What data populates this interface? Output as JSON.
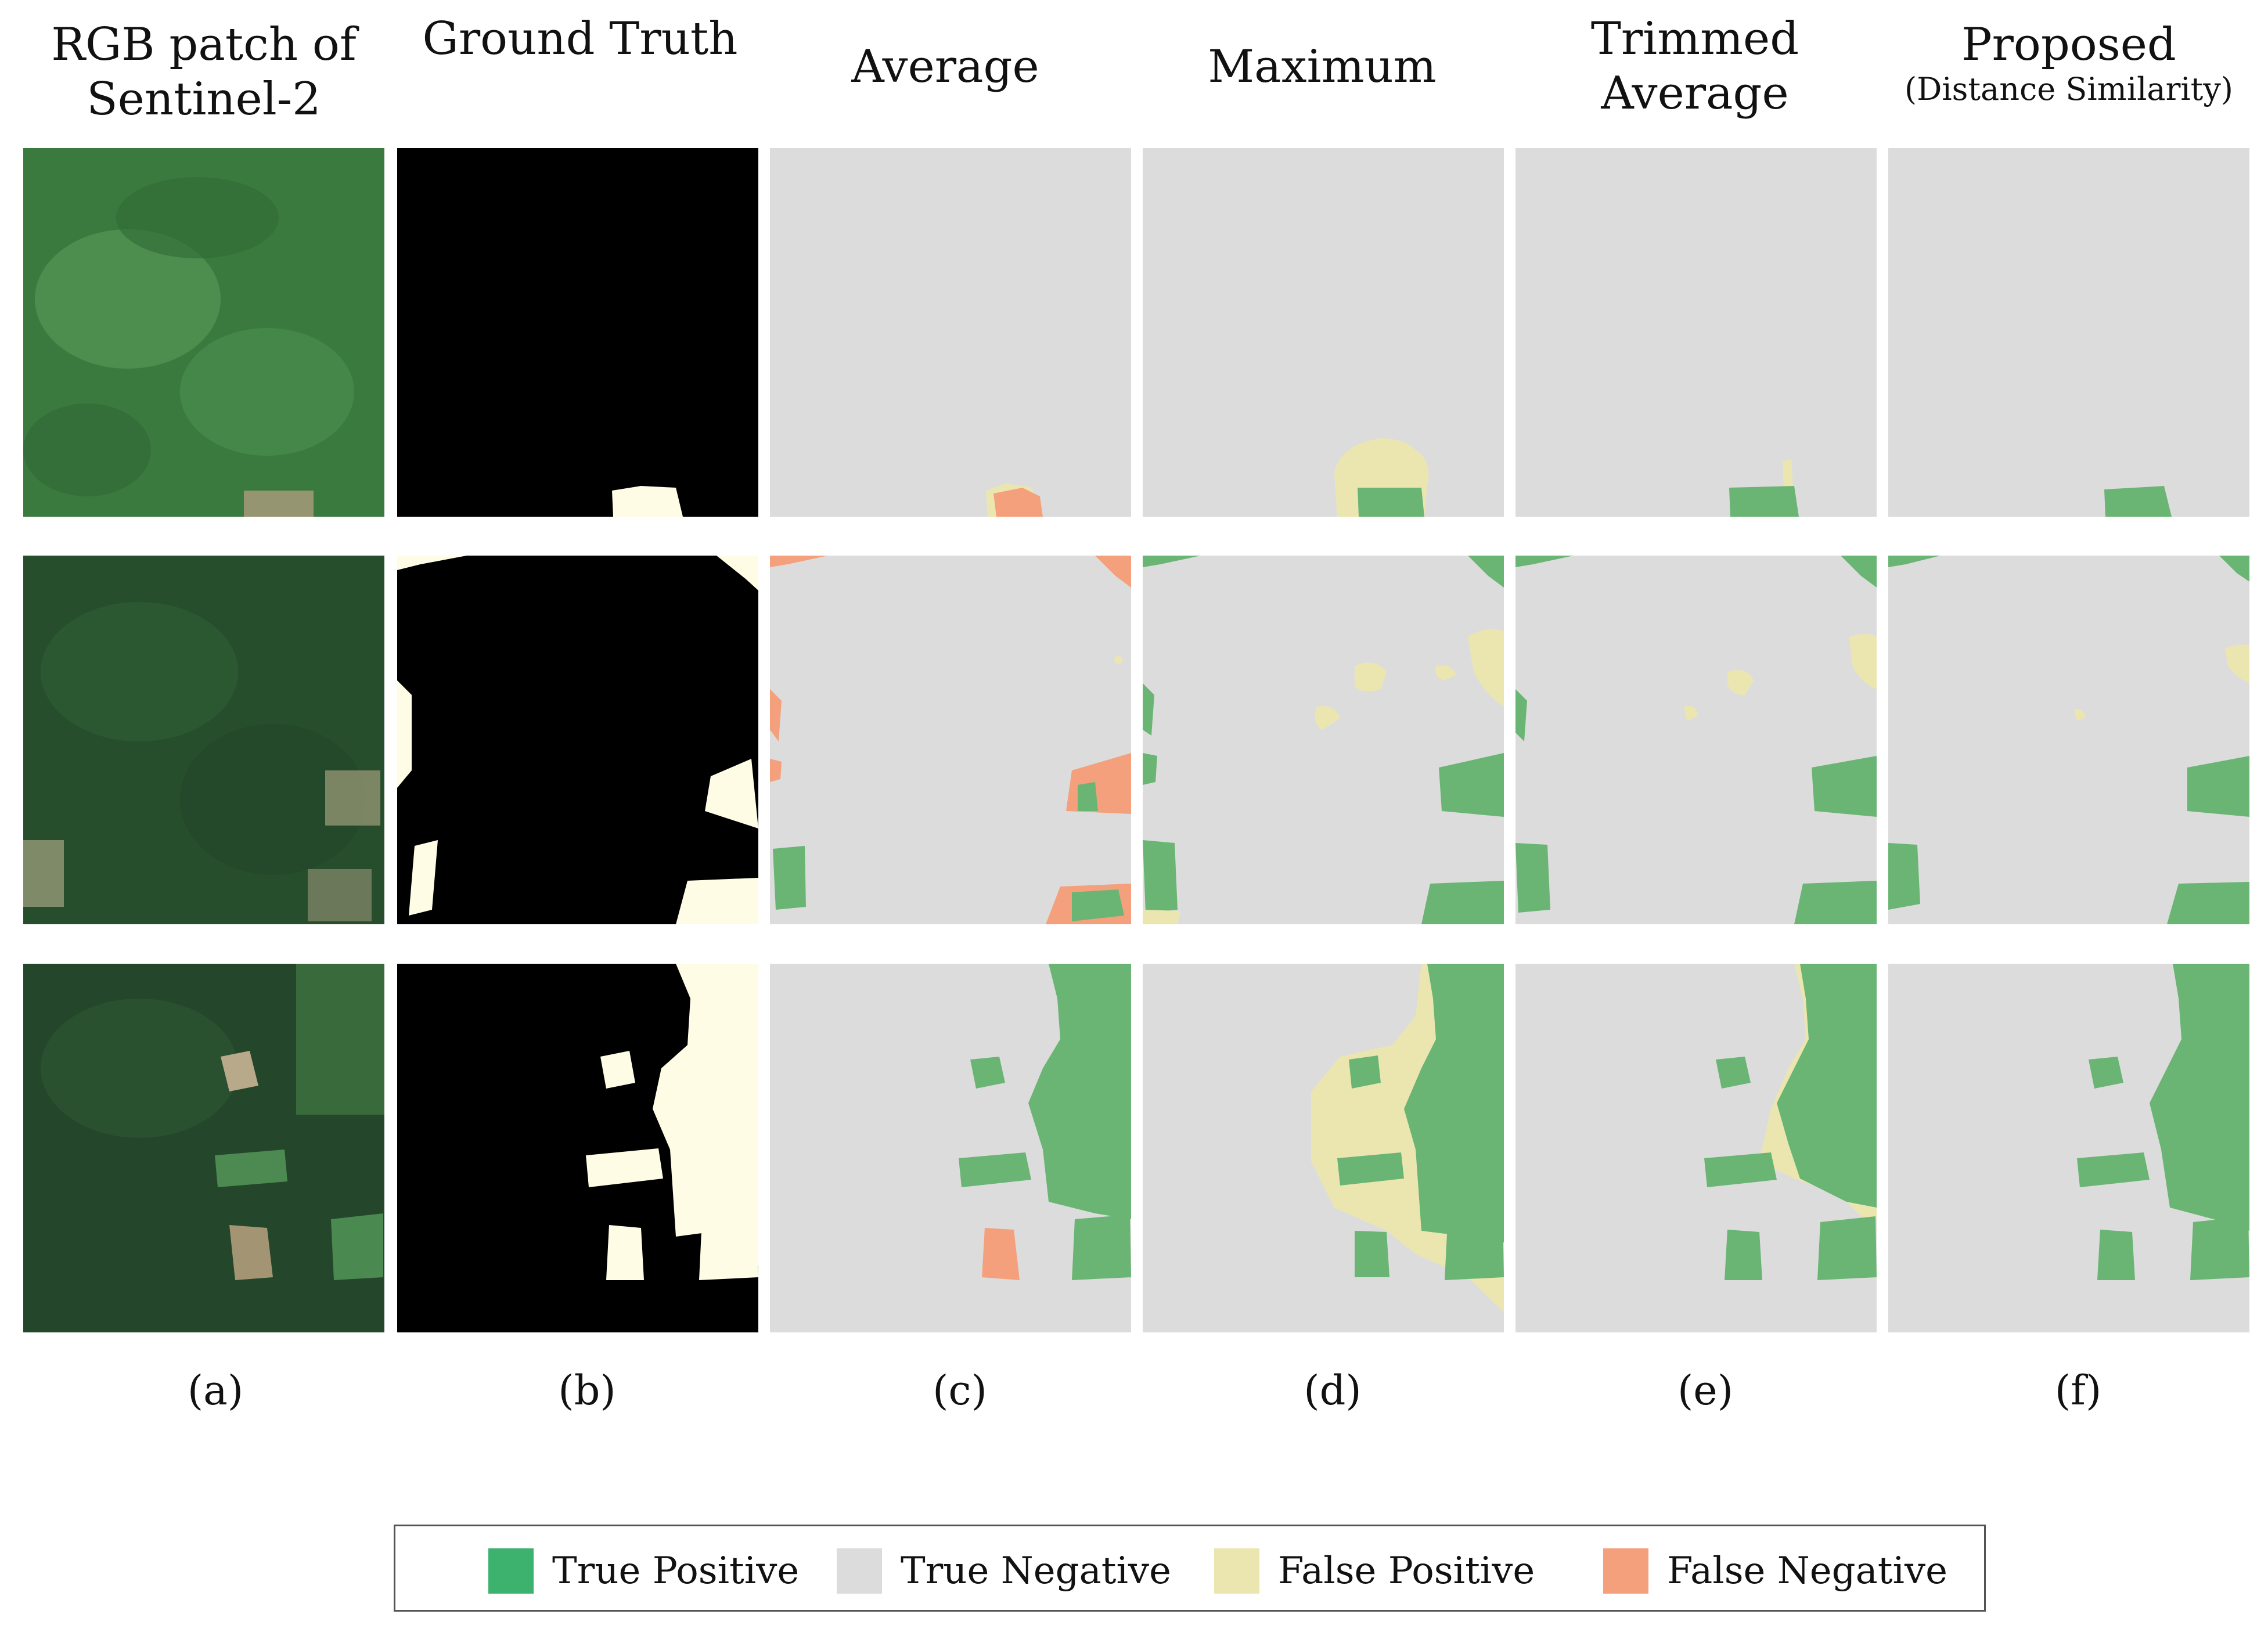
{
  "columns": [
    {
      "title": "RGB patch of Sentinel-2",
      "subtitle": "",
      "caption": "(a)"
    },
    {
      "title": "Ground Truth",
      "subtitle": "",
      "caption": "(b)"
    },
    {
      "title": "Average",
      "subtitle": "",
      "caption": "(c)"
    },
    {
      "title": "Maximum",
      "subtitle": "",
      "caption": "(d)"
    },
    {
      "title": "Trimmed Average",
      "subtitle": "",
      "caption": "(e)"
    },
    {
      "title": "Proposed",
      "subtitle": "(Distance Similarity)",
      "caption": "(f)"
    }
  ],
  "legend": [
    {
      "label": "True Positive",
      "color": "#3db16e"
    },
    {
      "label": "True Negative",
      "color": "#dcdcdc"
    },
    {
      "label": "False Positive",
      "color": "#ebe6b0"
    },
    {
      "label": "False Negative",
      "color": "#f4a07c"
    }
  ],
  "palette": {
    "forest_dark": "#25452a",
    "forest_mid": "#33673a",
    "forest_light": "#4a8a50",
    "clearing": "#b8a98a",
    "ground_truth_background": "#000000",
    "ground_truth_deforestation": "#fffce6",
    "tp_region": "#6ab574"
  }
}
